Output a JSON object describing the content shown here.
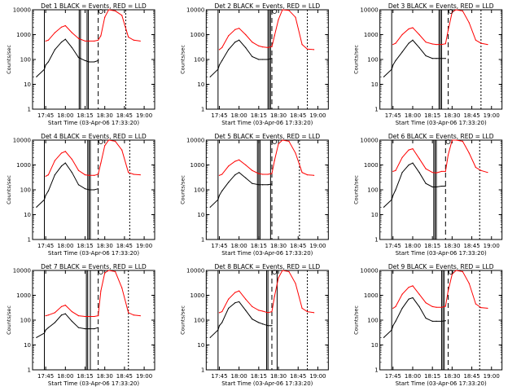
{
  "page": {
    "background": "#ffffff"
  },
  "colors": {
    "events": "#000000",
    "lld": "#ff0000",
    "axis": "#000000"
  },
  "chart_data": [
    {
      "type": "line",
      "title": "Det 1  BLACK = Events, RED = LLD",
      "xlabel": "Start Time (03-Apr-06 17:33:20)",
      "ylabel": "Counts/sec",
      "x_ticks": [
        "17:45",
        "18:00",
        "18:15",
        "18:30",
        "18:45",
        "19:00"
      ],
      "y_ticks": [
        "1",
        "10",
        "100",
        "1000",
        "10000"
      ],
      "y_scale": "log",
      "ylim": [
        1,
        10000
      ],
      "x": [
        "17:38",
        "17:44",
        "17:45",
        "17:47",
        "17:52",
        "17:57",
        "18:00",
        "18:05",
        "18:10",
        "18:15",
        "18:18",
        "18:22",
        "18:25",
        "18:27",
        "18:30",
        "18:33",
        "18:38",
        "18:43",
        "18:48",
        "18:52",
        "18:57"
      ],
      "series": [
        {
          "name": "Events",
          "values": [
            20,
            40,
            60,
            80,
            250,
            500,
            650,
            300,
            120,
            90,
            80,
            80,
            90,
            null,
            null,
            null,
            null,
            null,
            null,
            null,
            null
          ]
        },
        {
          "name": "LLD",
          "values": [
            null,
            null,
            550,
            600,
            1200,
            2000,
            2300,
            1200,
            700,
            550,
            550,
            550,
            600,
            900,
            5000,
            10000,
            9000,
            6000,
            800,
            600,
            550
          ]
        }
      ]
    },
    {
      "type": "line",
      "title": "Det 2  BLACK = Events, RED = LLD",
      "xlabel": "Start Time (03-Apr-06 17:33:20)",
      "ylabel": "Counts/sec",
      "x_ticks": [
        "17:45",
        "18:00",
        "18:15",
        "18:30",
        "18:45",
        "19:00"
      ],
      "y_ticks": [
        "1",
        "10",
        "100",
        "1000",
        "10000"
      ],
      "y_scale": "log",
      "ylim": [
        1,
        10000
      ],
      "x": [
        "17:38",
        "17:44",
        "17:45",
        "17:47",
        "17:52",
        "17:57",
        "18:00",
        "18:05",
        "18:10",
        "18:15",
        "18:18",
        "18:22",
        "18:25",
        "18:27",
        "18:30",
        "18:33",
        "18:38",
        "18:43",
        "18:48",
        "18:52",
        "18:57"
      ],
      "series": [
        {
          "name": "Events",
          "values": [
            20,
            40,
            60,
            90,
            250,
            500,
            600,
            300,
            130,
            100,
            100,
            100,
            110,
            null,
            null,
            null,
            null,
            null,
            null,
            null,
            null
          ]
        },
        {
          "name": "LLD",
          "values": [
            null,
            null,
            250,
            300,
            900,
            1600,
            1800,
            1000,
            500,
            350,
            320,
            300,
            330,
            900,
            4000,
            10000,
            9500,
            5000,
            400,
            260,
            250
          ]
        }
      ]
    },
    {
      "type": "line",
      "title": "Det 3  BLACK = Events, RED = LLD",
      "xlabel": "Start Time (03-Apr-06 17:33:20)",
      "ylabel": "Counts/sec",
      "x_ticks": [
        "17:45",
        "18:00",
        "18:15",
        "18:30",
        "18:45",
        "19:00"
      ],
      "y_ticks": [
        "1",
        "10",
        "100",
        "1000",
        "10000"
      ],
      "y_scale": "log",
      "ylim": [
        1,
        10000
      ],
      "x": [
        "17:38",
        "17:44",
        "17:45",
        "17:47",
        "17:52",
        "17:57",
        "18:00",
        "18:05",
        "18:10",
        "18:15",
        "18:18",
        "18:22",
        "18:25",
        "18:27",
        "18:30",
        "18:33",
        "18:38",
        "18:43",
        "18:48",
        "18:52",
        "18:57"
      ],
      "series": [
        {
          "name": "Events",
          "values": [
            20,
            40,
            60,
            90,
            200,
            450,
            600,
            300,
            140,
            110,
            110,
            110,
            110,
            null,
            null,
            null,
            null,
            null,
            null,
            null,
            null
          ]
        },
        {
          "name": "LLD",
          "values": [
            null,
            null,
            400,
            450,
            1000,
            1700,
            1900,
            1000,
            500,
            420,
            400,
            400,
            430,
            1500,
            8000,
            12000,
            9000,
            3000,
            600,
            450,
            400
          ]
        }
      ]
    },
    {
      "type": "line",
      "title": "Det 4  BLACK = Events, RED = LLD",
      "xlabel": "Start Time (03-Apr-06 17:33:20)",
      "ylabel": "Counts/sec",
      "x_ticks": [
        "17:45",
        "18:00",
        "18:15",
        "18:30",
        "18:45",
        "19:00"
      ],
      "y_ticks": [
        "1",
        "10",
        "100",
        "1000",
        "10000"
      ],
      "y_scale": "log",
      "ylim": [
        1,
        10000
      ],
      "x": [
        "17:38",
        "17:44",
        "17:45",
        "17:47",
        "17:52",
        "17:57",
        "18:00",
        "18:05",
        "18:10",
        "18:15",
        "18:18",
        "18:22",
        "18:25",
        "18:27",
        "18:30",
        "18:33",
        "18:38",
        "18:43",
        "18:48",
        "18:52",
        "18:57"
      ],
      "series": [
        {
          "name": "Events",
          "values": [
            20,
            40,
            60,
            90,
            400,
            900,
            1200,
            500,
            160,
            110,
            100,
            100,
            110,
            null,
            null,
            null,
            null,
            null,
            null,
            null,
            null
          ]
        },
        {
          "name": "LLD",
          "values": [
            null,
            null,
            350,
            400,
            1500,
            3000,
            3500,
            1700,
            600,
            400,
            380,
            380,
            420,
            1200,
            6000,
            10000,
            9000,
            4000,
            500,
            420,
            400
          ]
        }
      ]
    },
    {
      "type": "line",
      "title": "Det 5  BLACK = Events, RED = LLD",
      "xlabel": "Start Time (03-Apr-06 17:33:20)",
      "ylabel": "Counts/sec",
      "x_ticks": [
        "17:45",
        "18:00",
        "18:15",
        "18:30",
        "18:45",
        "19:00"
      ],
      "y_ticks": [
        "1",
        "10",
        "100",
        "1000",
        "10000"
      ],
      "y_scale": "log",
      "ylim": [
        1,
        10000
      ],
      "x": [
        "17:38",
        "17:44",
        "17:45",
        "17:47",
        "17:52",
        "17:57",
        "18:00",
        "18:05",
        "18:10",
        "18:15",
        "18:18",
        "18:22",
        "18:25",
        "18:27",
        "18:30",
        "18:33",
        "18:38",
        "18:43",
        "18:48",
        "18:52",
        "18:57"
      ],
      "series": [
        {
          "name": "Events",
          "values": [
            20,
            40,
            60,
            90,
            200,
            400,
            500,
            300,
            180,
            160,
            160,
            160,
            170,
            null,
            null,
            null,
            null,
            null,
            null,
            null,
            null
          ]
        },
        {
          "name": "LLD",
          "values": [
            null,
            null,
            380,
            420,
            900,
            1400,
            1600,
            1000,
            600,
            450,
            420,
            420,
            450,
            1500,
            7000,
            12000,
            9000,
            3000,
            500,
            400,
            380
          ]
        }
      ]
    },
    {
      "type": "line",
      "title": "Det 6  BLACK = Events, RED = LLD",
      "xlabel": "Start Time (03-Apr-06 17:33:20)",
      "ylabel": "Counts/sec",
      "x_ticks": [
        "17:45",
        "18:00",
        "18:15",
        "18:30",
        "18:45",
        "19:00"
      ],
      "y_ticks": [
        "1",
        "10",
        "100",
        "1000",
        "10000"
      ],
      "y_scale": "log",
      "ylim": [
        1,
        10000
      ],
      "x": [
        "17:38",
        "17:44",
        "17:45",
        "17:47",
        "17:52",
        "17:57",
        "18:00",
        "18:05",
        "18:10",
        "18:15",
        "18:18",
        "18:22",
        "18:25",
        "18:27",
        "18:30",
        "18:33",
        "18:38",
        "18:43",
        "18:48",
        "18:52",
        "18:57"
      ],
      "series": [
        {
          "name": "Events",
          "values": [
            20,
            40,
            60,
            100,
            500,
            1000,
            1200,
            500,
            180,
            130,
            130,
            140,
            140,
            null,
            null,
            null,
            null,
            null,
            null,
            null,
            null
          ]
        },
        {
          "name": "LLD",
          "values": [
            null,
            null,
            550,
            600,
            2000,
            4000,
            4500,
            1800,
            700,
            500,
            480,
            550,
            550,
            2500,
            10000,
            12000,
            9000,
            3000,
            800,
            600,
            500
          ]
        }
      ]
    },
    {
      "type": "line",
      "title": "Det 7  BLACK = Events, RED = LLD",
      "xlabel": "Start Time (03-Apr-06 17:33:20)",
      "ylabel": "Counts/sec",
      "x_ticks": [
        "17:45",
        "18:00",
        "18:15",
        "18:30",
        "18:45",
        "19:00"
      ],
      "y_ticks": [
        "1",
        "10",
        "100",
        "1000",
        "10000"
      ],
      "y_scale": "log",
      "ylim": [
        1,
        10000
      ],
      "x": [
        "17:38",
        "17:44",
        "17:45",
        "17:47",
        "17:52",
        "17:57",
        "18:00",
        "18:05",
        "18:10",
        "18:15",
        "18:18",
        "18:22",
        "18:25",
        "18:27",
        "18:30",
        "18:33",
        "18:38",
        "18:43",
        "18:48",
        "18:52",
        "18:57"
      ],
      "series": [
        {
          "name": "Events",
          "values": [
            20,
            30,
            40,
            50,
            80,
            160,
            180,
            90,
            50,
            45,
            45,
            45,
            50,
            null,
            null,
            null,
            null,
            null,
            null,
            null,
            null
          ]
        },
        {
          "name": "LLD",
          "values": [
            null,
            null,
            150,
            160,
            200,
            350,
            400,
            220,
            150,
            140,
            140,
            140,
            150,
            1500,
            8000,
            12000,
            9000,
            2000,
            200,
            160,
            150
          ]
        }
      ]
    },
    {
      "type": "line",
      "title": "Det 8  BLACK = Events, RED = LLD",
      "xlabel": "Start Time (03-Apr-06 17:33:20)",
      "ylabel": "Counts/sec",
      "x_ticks": [
        "17:45",
        "18:00",
        "18:15",
        "18:30",
        "18:45",
        "19:00"
      ],
      "y_ticks": [
        "1",
        "10",
        "100",
        "1000",
        "10000"
      ],
      "y_scale": "log",
      "ylim": [
        1,
        10000
      ],
      "x": [
        "17:38",
        "17:44",
        "17:45",
        "17:47",
        "17:52",
        "17:57",
        "18:00",
        "18:05",
        "18:10",
        "18:15",
        "18:18",
        "18:22",
        "18:25",
        "18:27",
        "18:30",
        "18:33",
        "18:38",
        "18:43",
        "18:48",
        "18:52",
        "18:57"
      ],
      "series": [
        {
          "name": "Events",
          "values": [
            20,
            40,
            60,
            80,
            300,
            500,
            550,
            250,
            110,
            80,
            70,
            60,
            60,
            null,
            null,
            null,
            null,
            null,
            null,
            null,
            null
          ]
        },
        {
          "name": "LLD",
          "values": [
            null,
            null,
            200,
            220,
            700,
            1300,
            1500,
            700,
            350,
            250,
            230,
            200,
            220,
            900,
            5000,
            10000,
            9000,
            3000,
            300,
            220,
            200
          ]
        }
      ]
    },
    {
      "type": "line",
      "title": "Det 9  BLACK = Events, RED = LLD",
      "xlabel": "Start Time (03-Apr-06 17:33:20)",
      "ylabel": "Counts/sec",
      "x_ticks": [
        "17:45",
        "18:00",
        "18:15",
        "18:30",
        "18:45",
        "19:00"
      ],
      "y_ticks": [
        "1",
        "10",
        "100",
        "1000",
        "10000"
      ],
      "y_scale": "log",
      "ylim": [
        1,
        10000
      ],
      "x": [
        "17:38",
        "17:44",
        "17:45",
        "17:47",
        "17:52",
        "17:57",
        "18:00",
        "18:05",
        "18:10",
        "18:15",
        "18:18",
        "18:22",
        "18:25",
        "18:27",
        "18:30",
        "18:33",
        "18:38",
        "18:43",
        "18:48",
        "18:52",
        "18:57"
      ],
      "series": [
        {
          "name": "Events",
          "values": [
            20,
            40,
            60,
            90,
            300,
            700,
            800,
            350,
            120,
            90,
            90,
            90,
            95,
            null,
            null,
            null,
            null,
            null,
            null,
            null,
            null
          ]
        },
        {
          "name": "LLD",
          "values": [
            null,
            null,
            300,
            350,
            1100,
            2100,
            2400,
            1100,
            500,
            350,
            330,
            330,
            360,
            1500,
            7000,
            12000,
            9000,
            3000,
            450,
            320,
            300
          ]
        }
      ]
    }
  ]
}
